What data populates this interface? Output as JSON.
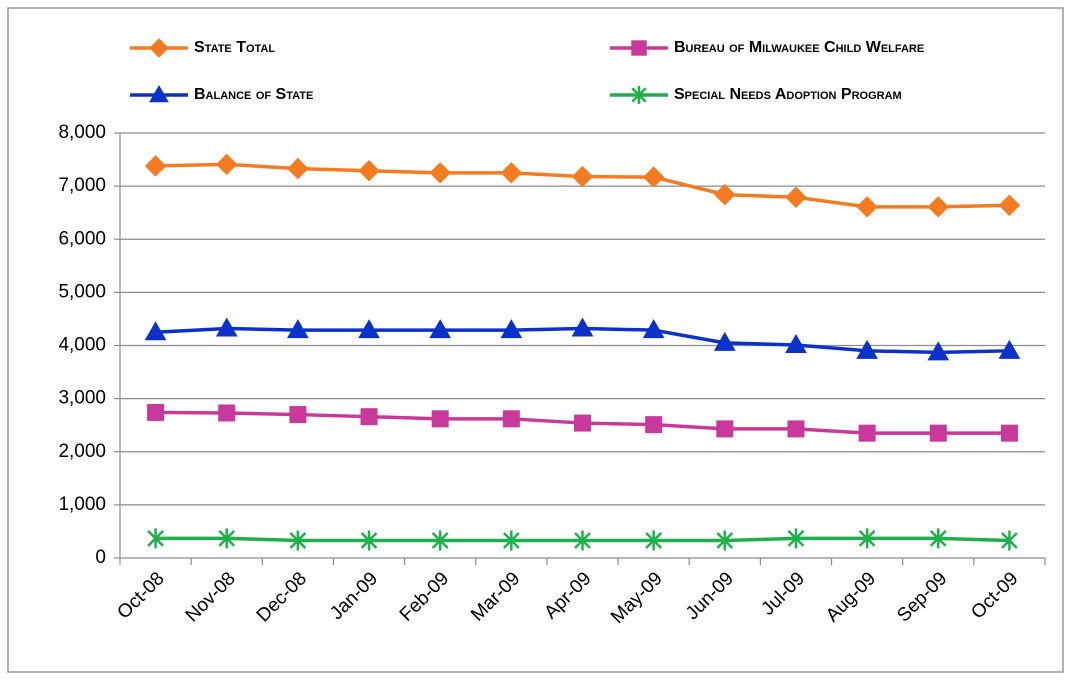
{
  "chart_data": {
    "type": "line",
    "categories": [
      "Oct-08",
      "Nov-08",
      "Dec-08",
      "Jan-09",
      "Feb-09",
      "Mar-09",
      "Apr-09",
      "May-09",
      "Jun-09",
      "Jul-09",
      "Aug-09",
      "Sep-09",
      "Oct-09"
    ],
    "series": [
      {
        "name": "State Total",
        "color": "#f47b20",
        "marker": "diamond",
        "values": [
          7380,
          7410,
          7330,
          7290,
          7250,
          7250,
          7180,
          7170,
          6840,
          6790,
          6610,
          6610,
          6640
        ]
      },
      {
        "name": "Bureau of Milwaukee Child Welfare",
        "color": "#c8399b",
        "marker": "square",
        "values": [
          2740,
          2730,
          2700,
          2660,
          2620,
          2620,
          2540,
          2510,
          2430,
          2430,
          2350,
          2350,
          2350
        ]
      },
      {
        "name": "Balance of State",
        "color": "#0a32c8",
        "marker": "triangle",
        "values": [
          4250,
          4320,
          4290,
          4290,
          4290,
          4290,
          4320,
          4290,
          4050,
          4010,
          3900,
          3870,
          3900
        ]
      },
      {
        "name": "Special Needs Adoption Program",
        "color": "#1fb04a",
        "marker": "star",
        "values": [
          370,
          370,
          330,
          330,
          330,
          330,
          330,
          330,
          330,
          370,
          370,
          370,
          330
        ]
      }
    ],
    "ylim": [
      0,
      8000
    ],
    "yticks": [
      0,
      {
        "value": 1000,
        "label": "1,000"
      },
      {
        "value": 2000,
        "label": "2,000"
      },
      {
        "value": 3000,
        "label": "3,000"
      },
      {
        "value": 4000,
        "label": "4,000"
      },
      {
        "value": 5000,
        "label": "5,000"
      },
      {
        "value": 6000,
        "label": "6,000"
      },
      {
        "value": 7000,
        "label": "7,000"
      },
      {
        "value": 8000,
        "label": "8,000"
      }
    ],
    "grid": true
  }
}
